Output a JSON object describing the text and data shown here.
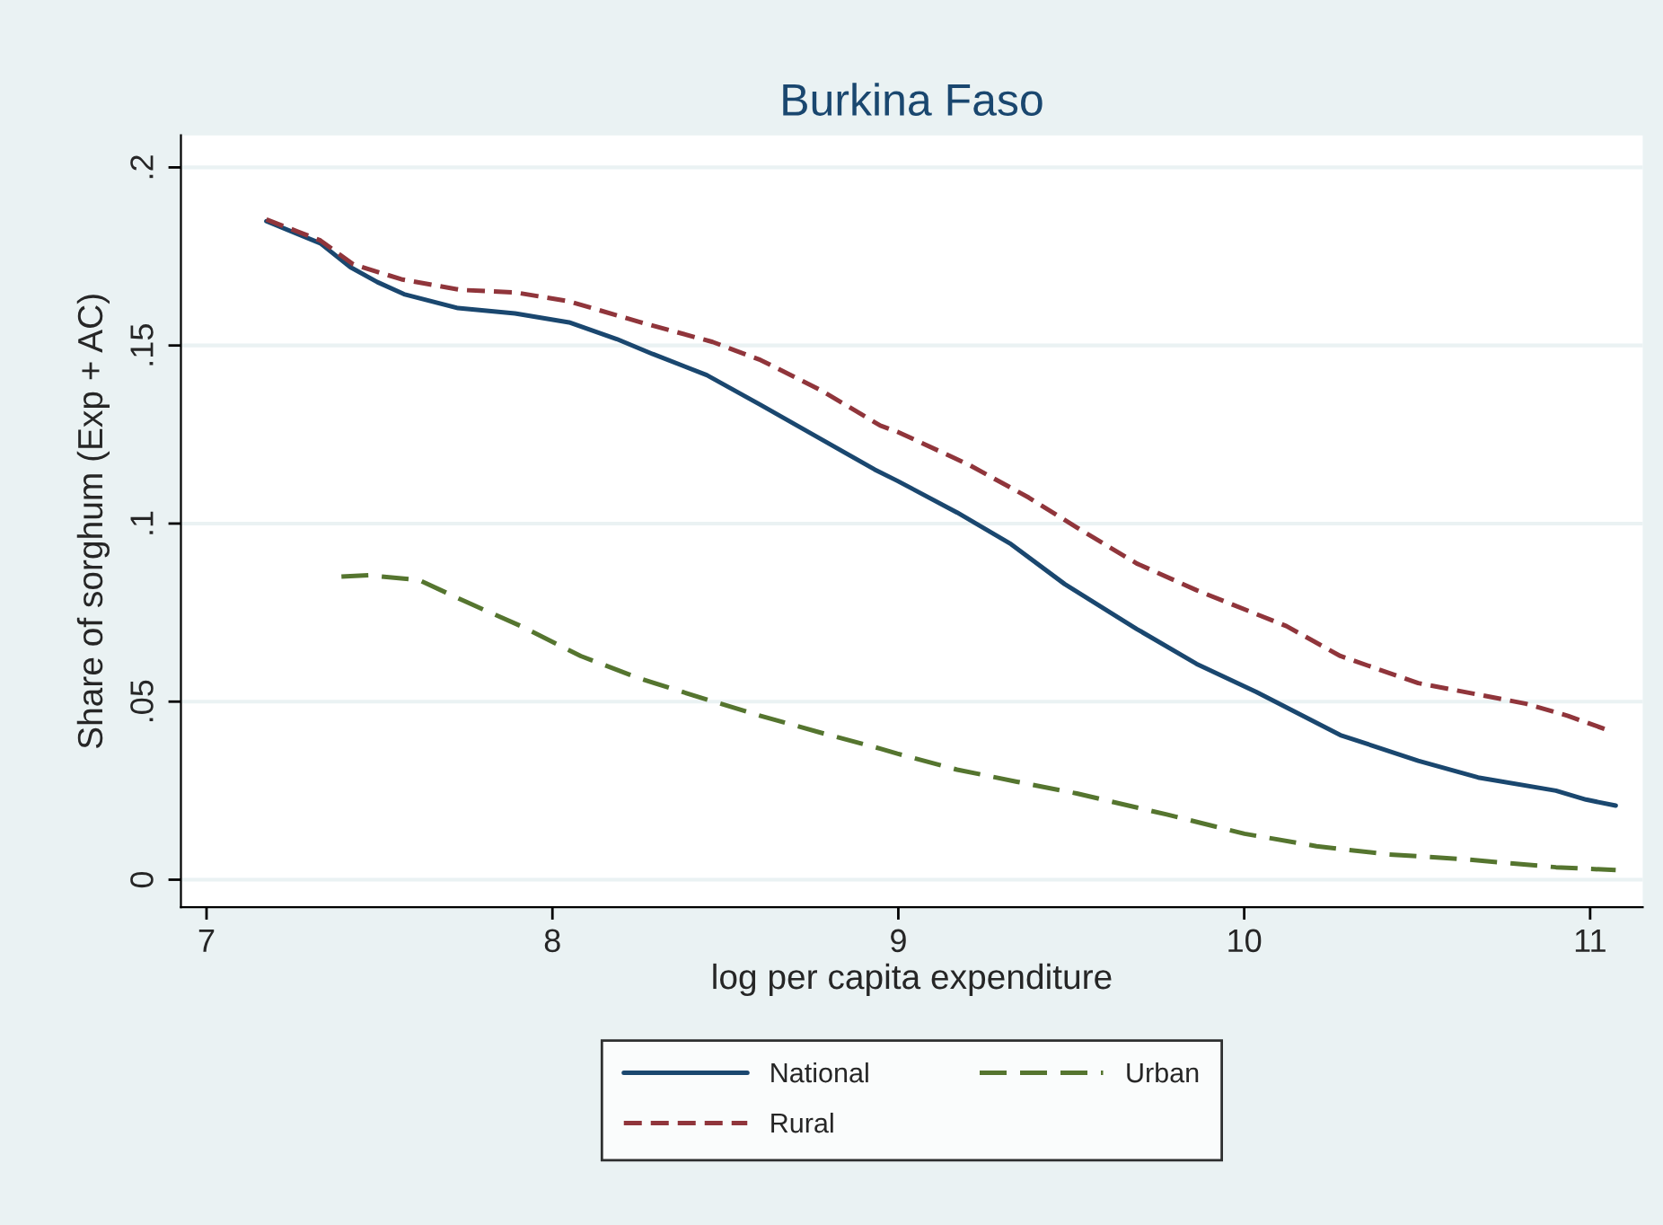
{
  "chart_data": {
    "type": "line",
    "title": "Burkina Faso",
    "xlabel": "log per capita expenditure",
    "ylabel": "Share of sorghum (Exp + AC)",
    "xlim": [
      6.926,
      11.152
    ],
    "ylim": [
      -0.0077,
      0.209
    ],
    "xticks": [
      7,
      8,
      9,
      10,
      11
    ],
    "yticks": [
      {
        "value": 0,
        "label": "0"
      },
      {
        "value": 0.05,
        "label": ".05"
      },
      {
        "value": 0.1,
        "label": ".1"
      },
      {
        "value": 0.15,
        "label": ".15"
      },
      {
        "value": 0.2,
        "label": ".2"
      }
    ],
    "grid": "y",
    "legend": "bottom",
    "marker": "none",
    "series": [
      {
        "name": "National",
        "color": "#1a476f",
        "line_style": "solid",
        "x": [
          7.173,
          7.329,
          7.416,
          7.494,
          7.571,
          7.727,
          7.892,
          8.048,
          8.186,
          8.29,
          8.446,
          8.602,
          8.775,
          8.931,
          8.997,
          9.17,
          9.326,
          9.481,
          9.689,
          9.862,
          10.035,
          10.278,
          10.503,
          10.676,
          10.901,
          10.988,
          11.074
        ],
        "values": [
          0.1849,
          0.1787,
          0.172,
          0.1678,
          0.1644,
          0.1605,
          0.159,
          0.1565,
          0.1518,
          0.1476,
          0.1417,
          0.1333,
          0.1238,
          0.1152,
          0.112,
          0.1031,
          0.0942,
          0.083,
          0.0704,
          0.0606,
          0.0527,
          0.0406,
          0.0334,
          0.0287,
          0.025,
          0.0225,
          0.0208
        ]
      },
      {
        "name": "Rural",
        "color": "#90353b",
        "line_style": "dashed",
        "x": [
          7.173,
          7.329,
          7.424,
          7.563,
          7.736,
          7.892,
          8.048,
          8.255,
          8.463,
          8.602,
          8.775,
          8.948,
          8.997,
          9.204,
          9.377,
          9.516,
          9.689,
          9.862,
          10.122,
          10.278,
          10.503,
          10.815,
          10.936,
          11.048
        ],
        "values": [
          0.1854,
          0.1795,
          0.1728,
          0.1686,
          0.1656,
          0.1649,
          0.1624,
          0.1565,
          0.151,
          0.1459,
          0.1375,
          0.1275,
          0.1258,
          0.1165,
          0.1073,
          0.0989,
          0.0888,
          0.0813,
          0.0712,
          0.0628,
          0.0552,
          0.0494,
          0.046,
          0.0421
        ]
      },
      {
        "name": "Urban",
        "color": "#55752f",
        "line_style": "dashed",
        "x": [
          7.39,
          7.468,
          7.615,
          7.753,
          7.909,
          8.082,
          8.255,
          8.429,
          8.602,
          8.775,
          8.948,
          8.997,
          9.17,
          9.343,
          9.516,
          9.776,
          10.001,
          10.209,
          10.417,
          10.642,
          10.901,
          11.074
        ],
        "values": [
          0.0851,
          0.0855,
          0.0841,
          0.0779,
          0.0712,
          0.0628,
          0.0564,
          0.0511,
          0.046,
          0.0413,
          0.0368,
          0.0354,
          0.0309,
          0.0275,
          0.0242,
          0.0183,
          0.0129,
          0.0094,
          0.0071,
          0.0057,
          0.0035,
          0.0027
        ]
      }
    ]
  }
}
